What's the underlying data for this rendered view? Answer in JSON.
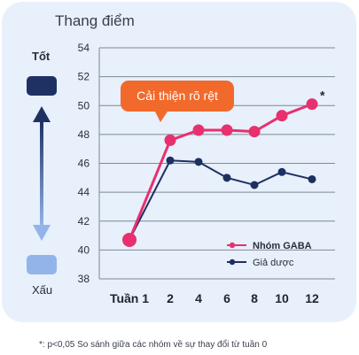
{
  "header": {
    "title": "Thang điểm"
  },
  "scale": {
    "good_label": "Tốt",
    "bad_label": "Xấu"
  },
  "colors": {
    "gaba": "#e8306e",
    "placebo": "#1e2f62",
    "callout": "#f26a2b",
    "grid": "#7f8896"
  },
  "callout": {
    "text": "Cải thiện rõ rệt"
  },
  "footnote": "*: p<0,05 So sánh giữa các nhóm về sự thay đổi từ tuần 0",
  "chart_data": {
    "type": "line",
    "ylabel": "Thang điểm",
    "ylim": [
      38,
      54
    ],
    "yticks": [
      38,
      40,
      42,
      44,
      46,
      48,
      50,
      52,
      54
    ],
    "categories": [
      "Tuần 1",
      "2",
      "4",
      "6",
      "8",
      "10",
      "12"
    ],
    "grid": true,
    "legend_placement": "bottom-right",
    "series": [
      {
        "name": "Nhóm GABA",
        "values": [
          40.7,
          47.6,
          48.3,
          48.3,
          48.2,
          49.3,
          50.1
        ],
        "color": "#e8306e"
      },
      {
        "name": "Giả dược",
        "values": [
          40.7,
          46.2,
          46.1,
          45.0,
          44.5,
          45.4,
          44.9
        ],
        "color": "#1e2f62"
      }
    ],
    "annotations": [
      {
        "text": "*",
        "category": "12",
        "series": "Nhóm GABA"
      }
    ]
  }
}
